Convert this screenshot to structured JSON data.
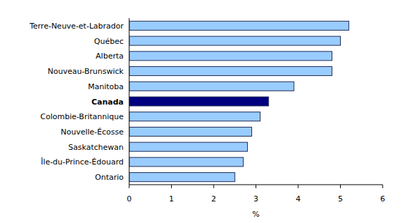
{
  "chart_data": {
    "type": "bar",
    "orientation": "horizontal",
    "categories": [
      "Terre-Neuve-et-Labrador",
      "Québec",
      "Alberta",
      "Nouveau-Brunswick",
      "Manitoba",
      "Canada",
      "Colombie-Britannique",
      "Nouvelle-Écosse",
      "Saskatchewan",
      "Île-du-Prince-Édouard",
      "Ontario"
    ],
    "values": [
      5.2,
      5.0,
      4.8,
      4.8,
      3.9,
      3.3,
      3.1,
      2.9,
      2.8,
      2.7,
      2.5
    ],
    "colors": [
      "#99ccff",
      "#99ccff",
      "#99ccff",
      "#99ccff",
      "#99ccff",
      "#000080",
      "#99ccff",
      "#99ccff",
      "#99ccff",
      "#99ccff",
      "#99ccff"
    ],
    "x_label": "%",
    "xlim": [
      0,
      6
    ],
    "xticks": [
      0,
      1,
      2,
      3,
      4,
      5,
      6
    ],
    "grid": false
  }
}
